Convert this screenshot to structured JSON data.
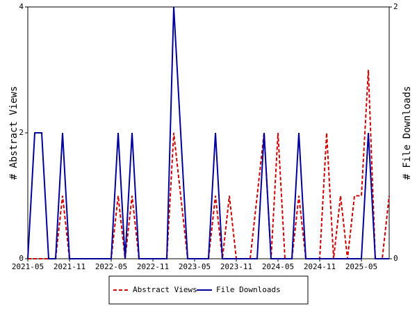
{
  "chart_data": {
    "type": "line",
    "categories": [
      "2021-05",
      null,
      null,
      null,
      null,
      null,
      "2021-11",
      null,
      null,
      null,
      null,
      null,
      "2022-05",
      null,
      null,
      null,
      null,
      null,
      "2022-11",
      null,
      null,
      null,
      null,
      null,
      "2023-05",
      null,
      null,
      null,
      null,
      null,
      "2023-11",
      null,
      null,
      null,
      null,
      null,
      "2024-05",
      null,
      null,
      null,
      null,
      null,
      "2024-11",
      null,
      null,
      null,
      null,
      null,
      "2025-05",
      null,
      null,
      null,
      null
    ],
    "series": [
      {
        "name": "Abstract Views",
        "color": "#cc0000",
        "dash": true,
        "values": [
          0,
          0,
          0,
          0,
          0,
          1,
          0,
          0,
          0,
          0,
          0,
          0,
          0,
          1,
          0,
          1,
          0,
          0,
          0,
          0,
          0,
          2,
          1,
          0,
          0,
          0,
          0,
          1,
          0,
          1,
          0,
          0,
          0,
          1,
          2,
          0,
          2,
          0,
          0,
          1,
          0,
          0,
          0,
          2,
          0,
          1,
          0,
          1,
          1,
          3,
          0,
          0,
          1
        ]
      },
      {
        "name": "File Downloads",
        "color": "#000099",
        "axis": "y2",
        "values": [
          0,
          1,
          1,
          0,
          0,
          1,
          0,
          0,
          0,
          0,
          0,
          0,
          0,
          1,
          0,
          1,
          0,
          0,
          0,
          0,
          0,
          2,
          1,
          0,
          0,
          0,
          0,
          1,
          0,
          0,
          0,
          0,
          0,
          0,
          1,
          0,
          0,
          0,
          0,
          1,
          0,
          0,
          0,
          0,
          0,
          0,
          0,
          0,
          0,
          1,
          0,
          0,
          0
        ]
      }
    ],
    "ylabel": "# Abstract Views",
    "y2label": "# File Downloads",
    "ylim": [
      0,
      4
    ],
    "yticks": [
      0,
      2,
      4
    ],
    "y2lim": [
      0,
      2
    ],
    "y2ticks": [
      0,
      2
    ]
  }
}
